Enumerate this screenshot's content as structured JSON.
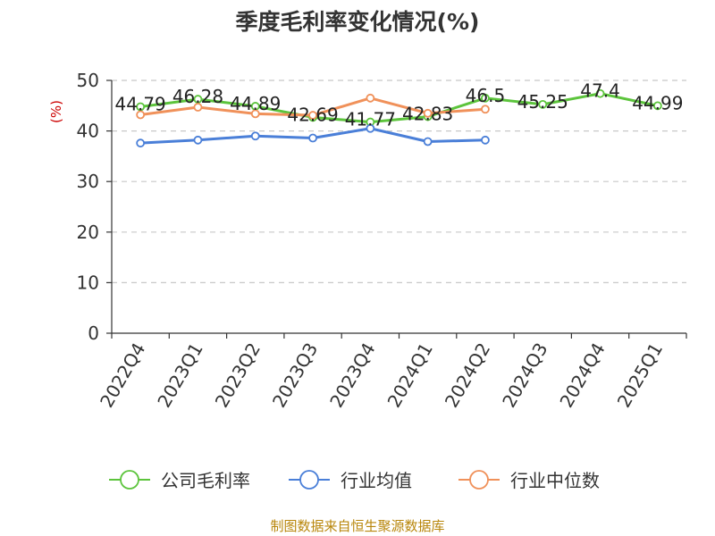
{
  "chart_data": {
    "type": "line",
    "title": "季度毛利率变化情况(%)",
    "ylabel": "(%)",
    "ylim": [
      0,
      50
    ],
    "yticks": [
      0,
      10,
      20,
      30,
      40,
      50
    ],
    "grid": "horizontal dashed",
    "legend_position": "bottom",
    "categories": [
      "2022Q4",
      "2023Q1",
      "2023Q2",
      "2023Q3",
      "2023Q4",
      "2024Q1",
      "2024Q2",
      "2024Q3",
      "2024Q4",
      "2025Q1"
    ],
    "series": [
      {
        "name": "公司毛利率",
        "color": "#5cc43c",
        "values": [
          44.79,
          46.28,
          44.89,
          42.69,
          41.77,
          42.83,
          46.5,
          45.25,
          47.4,
          44.99
        ],
        "data_labels": [
          "44.79",
          "46.28",
          "44.89",
          "42.69",
          "41.77",
          "42.83",
          "46.5",
          "45.25",
          "47.4",
          "44.99"
        ]
      },
      {
        "name": "行业均值",
        "color": "#4a7fd8",
        "values": [
          37.6,
          38.2,
          39.0,
          38.6,
          40.5,
          37.9,
          38.2,
          null,
          null,
          null
        ]
      },
      {
        "name": "行业中位数",
        "color": "#f0915a",
        "values": [
          43.2,
          44.7,
          43.4,
          43.1,
          46.5,
          43.5,
          44.3,
          null,
          null,
          null
        ]
      }
    ]
  },
  "source_text": "制图数据来自恒生聚源数据库"
}
